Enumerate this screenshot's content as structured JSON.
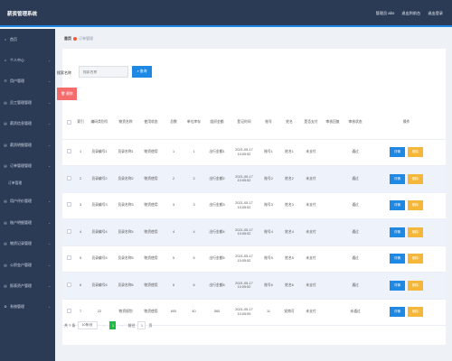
{
  "app": {
    "title": "薪资管理系统"
  },
  "topbar": {
    "user": "管理员 abo",
    "front": "退出到前台",
    "logout": "退出登录"
  },
  "sidebar": {
    "items": [
      {
        "label": "首页",
        "icon": "home-icon"
      },
      {
        "label": "个人中心",
        "icon": "user-icon"
      },
      {
        "label": "用户管理",
        "icon": "users-icon"
      },
      {
        "label": "员工管理管理",
        "icon": "list-icon"
      },
      {
        "label": "薪资信息管理",
        "icon": "list-icon"
      },
      {
        "label": "薪资明细管理",
        "icon": "list-icon"
      },
      {
        "label": "订单管理管理",
        "icon": "list-icon",
        "sub": [
          "订单管理"
        ]
      },
      {
        "label": "用户评价管理",
        "icon": "list-icon"
      },
      {
        "label": "账户明细管理",
        "icon": "list-icon"
      },
      {
        "label": "物资记录管理",
        "icon": "list-icon"
      },
      {
        "label": "公积金户管理",
        "icon": "list-icon"
      },
      {
        "label": "报表资产管理",
        "icon": "list-icon"
      },
      {
        "label": "系统管理",
        "icon": "gear-icon"
      }
    ]
  },
  "breadcrumb": {
    "home": "首页",
    "current": "订单管理"
  },
  "search": {
    "label": "搜索名称",
    "placeholder": "搜索名称",
    "button": "查询"
  },
  "toolbar": {
    "delete": "删除"
  },
  "table": {
    "headers": [
      "",
      "索引",
      "编码类别号",
      "物资名称",
      "使用状态",
      "总数",
      "单位库存",
      "组织金额",
      "登记时间",
      "账号",
      "姓名",
      "是否支付",
      "审核回复",
      "审核状态",
      "操作"
    ],
    "rows": [
      [
        "1",
        "员录编号1",
        "员录名称1",
        "物资使用",
        "1",
        "1",
        "出行金额1",
        "2021-05-17 10:05:52",
        "账号1",
        "姓名1",
        "未支付",
        "",
        "通过"
      ],
      [
        "2",
        "员录编号2",
        "员录名称2",
        "物资使用",
        "2",
        "2",
        "出行金额2",
        "2021-05-17 10:05:52",
        "账号2",
        "姓名2",
        "未支付",
        "",
        "通过"
      ],
      [
        "3",
        "员录编号3",
        "员录名称3",
        "物资使用",
        "3",
        "3",
        "出行金额3",
        "2021-05-17 10:05:52",
        "账号3",
        "姓名3",
        "未支付",
        "",
        "通过"
      ],
      [
        "4",
        "员录编号4",
        "员录名称4",
        "物资使用",
        "4",
        "4",
        "出行金额4",
        "2021-05-17 10:05:52",
        "账号4",
        "姓名4",
        "未支付",
        "",
        "通过"
      ],
      [
        "5",
        "员录编号5",
        "员录名称5",
        "物资使用",
        "5",
        "5",
        "出行金额5",
        "2021-05-17 10:05:52",
        "账号5",
        "姓名5",
        "未支付",
        "",
        "通过"
      ],
      [
        "6",
        "员录编号6",
        "员录名称6",
        "物资使用",
        "6",
        "6",
        "出行金额6",
        "2021-05-17 10:05:52",
        "账号6",
        "姓名6",
        "未支付",
        "",
        "通过"
      ],
      [
        "7",
        "22",
        "物资规划",
        "物资使用",
        "600",
        "40",
        "560",
        "2021-05-17 10:05:59",
        "11",
        "党南可",
        "未支付",
        "",
        "未通过"
      ]
    ],
    "detail_label": "详情",
    "delete_label": "删除"
  },
  "pager": {
    "total": "共 7 条",
    "size": "10条/页",
    "current": "1",
    "goto_label": "前往",
    "goto_value": "1",
    "page_unit": "页"
  }
}
